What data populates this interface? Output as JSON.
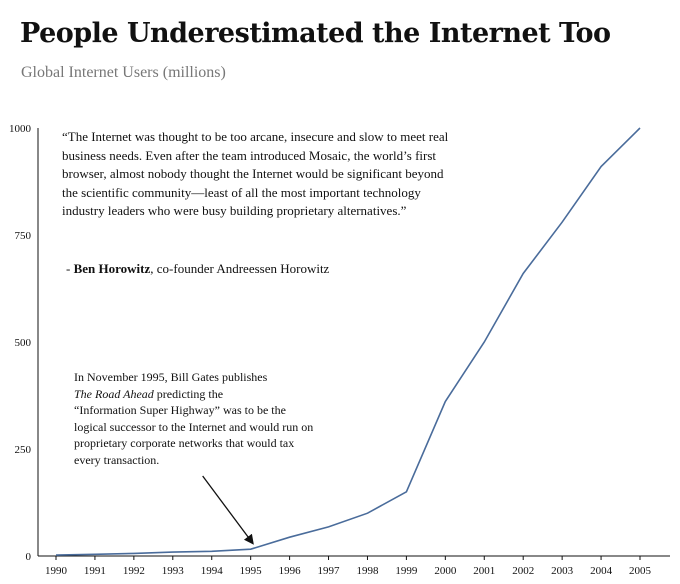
{
  "title": "People Underestimated the Internet Too",
  "subtitle": "Global Internet Users (millions)",
  "quote": {
    "text": "“The Internet was thought to be too arcane, insecure and slow to meet real business needs. Even after the team introduced Mosaic, the world’s first browser, almost nobody thought the Internet would be significant beyond the scientific community—least of all the most important technology industry leaders who were busy building proprietary alternatives.”",
    "prefix": "- ",
    "author": "Ben Horowitz",
    "role": ", co-founder Andreessen Horowitz"
  },
  "annotation": {
    "line1": "In November 1995, Bill Gates publishes",
    "book": "The Road Ahead",
    "line2": " predicting the",
    "rest": "“Information Super Highway” was to be the logical successor to the Internet and would run on proprietary corporate networks that would tax every transaction."
  },
  "chart_data": {
    "type": "line",
    "title": "People Underestimated the Internet Too",
    "subtitle": "Global Internet Users (millions)",
    "xlabel": "",
    "ylabel": "",
    "categories": [
      "1990",
      "1991",
      "1992",
      "1993",
      "1994",
      "1995",
      "1996",
      "1997",
      "1998",
      "1999",
      "2000",
      "2001",
      "2002",
      "2003",
      "2004",
      "2005"
    ],
    "yticks": [
      0,
      250,
      500,
      750,
      1000
    ],
    "ylim": [
      0,
      1000
    ],
    "grid": false,
    "series": [
      {
        "values": [
          2,
          4,
          6,
          9,
          11,
          16,
          44,
          68,
          100,
          150,
          361,
          500,
          660,
          780,
          910,
          1000
        ]
      }
    ],
    "line_color": "#4a6c9b",
    "annotation_points_to": "1995"
  }
}
